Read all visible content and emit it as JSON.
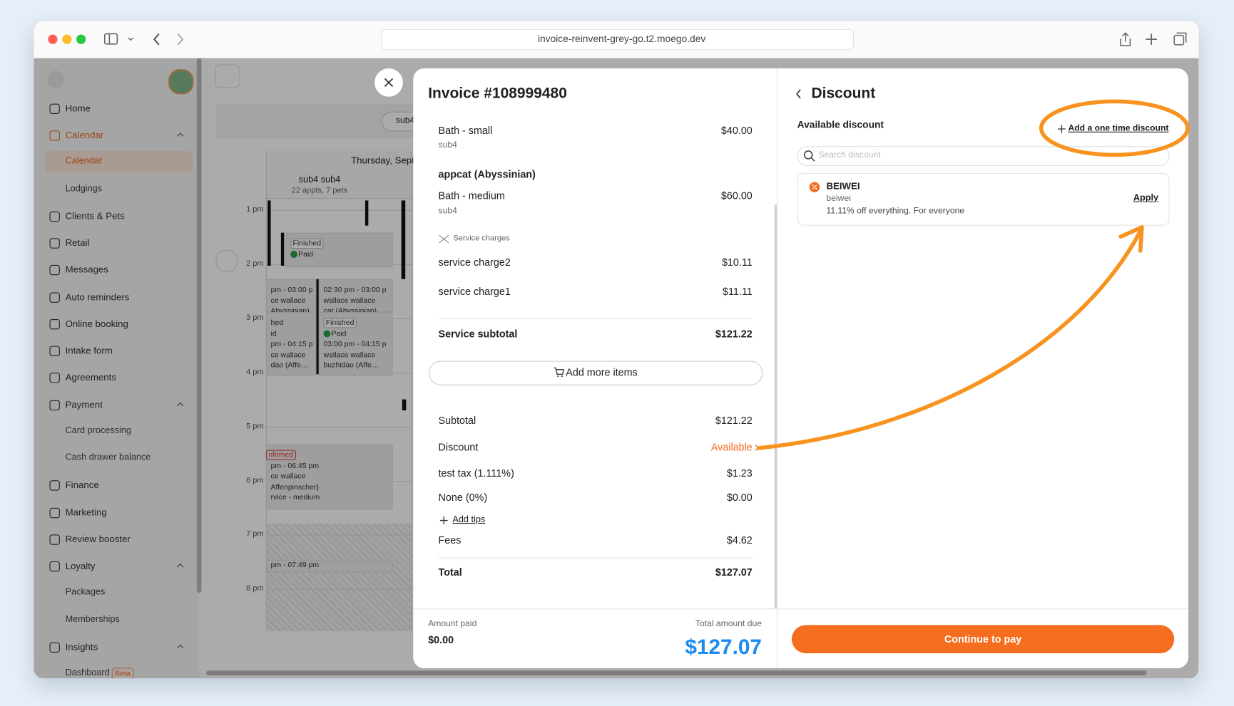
{
  "browser": {
    "url": "invoice-reinvent-grey-go.t2.moego.dev"
  },
  "sidebar": {
    "sections": [
      {
        "label": "Home"
      },
      {
        "label": "Calendar",
        "children": [
          {
            "label": "Calendar"
          },
          {
            "label": "Lodgings"
          }
        ]
      },
      {
        "label": "Clients & Pets"
      },
      {
        "label": "Retail"
      },
      {
        "label": "Messages"
      },
      {
        "label": "Auto reminders"
      },
      {
        "label": "Online booking"
      },
      {
        "label": "Intake form"
      },
      {
        "label": "Agreements"
      },
      {
        "label": "Payment",
        "children": [
          {
            "label": "Card processing"
          },
          {
            "label": "Cash drawer balance"
          }
        ]
      },
      {
        "label": "Finance"
      },
      {
        "label": "Marketing"
      },
      {
        "label": "Review booster"
      },
      {
        "label": "Loyalty",
        "children": [
          {
            "label": "Packages"
          },
          {
            "label": "Memberships"
          }
        ]
      },
      {
        "label": "Insights",
        "children": [
          {
            "label": "Dashboard",
            "badge": "Beta"
          }
        ]
      }
    ]
  },
  "calendar": {
    "filter": "sub4",
    "day": "Thursday, Sept",
    "staff": "sub4 sub4",
    "staff_meta": "22 appts, 7 pets",
    "times": [
      "1 pm",
      "2 pm",
      "3 pm",
      "4 pm",
      "5 pm",
      "6 pm",
      "7 pm",
      "8 pm"
    ],
    "events": [
      {
        "lines": [
          "Finished",
          "Paid"
        ]
      },
      {
        "lines": [
          "pm - 03:00 p",
          "ce wallace",
          "Abyssinian)"
        ]
      },
      {
        "lines": [
          "02:30 pm - 03:00 p",
          "wallace wallace",
          "cat (Abyssinian)"
        ]
      },
      {
        "lines": [
          "hed",
          "id",
          "pm - 04:15 p",
          "ce wallace",
          "dao (Affe…"
        ]
      },
      {
        "lines": [
          "Finished",
          "Paid",
          "03:00 pm - 04:15 p",
          "wallace wallace",
          "buzhidao (Affe…"
        ]
      },
      {
        "lines": [
          "nfirmed",
          "pm - 06:45 pm",
          "ce wallace",
          "Affenpinscher)",
          "rvice - medium"
        ]
      },
      {
        "lines": [
          "pm - 07:49 pm"
        ]
      }
    ]
  },
  "invoice": {
    "title": "Invoice #108999480",
    "groups": [
      {
        "items": [
          {
            "name": "Bath - small",
            "price": "$40.00",
            "staff": "sub4"
          }
        ]
      },
      {
        "pet": "appcat (Abyssinian)",
        "items": [
          {
            "name": "Bath - medium",
            "price": "$60.00",
            "staff": "sub4"
          }
        ]
      }
    ],
    "service_charges": {
      "label": "Service charges",
      "items": [
        {
          "name": "service charge2",
          "price": "$10.11"
        },
        {
          "name": "service charge1",
          "price": "$11.11"
        }
      ]
    },
    "service_subtotal": {
      "label": "Service subtotal",
      "value": "$121.22"
    },
    "add_items": "Add more items",
    "summary": [
      {
        "label": "Subtotal",
        "value": "$121.22"
      },
      {
        "label": "Discount",
        "value": "Available"
      },
      {
        "label": "test tax (1.111%)",
        "value": "$1.23"
      },
      {
        "label": "None (0%)",
        "value": "$0.00"
      }
    ],
    "add_tips": "Add tips",
    "fees": {
      "label": "Fees",
      "value": "$4.62"
    },
    "total": {
      "label": "Total",
      "value": "$127.07"
    },
    "footer": {
      "paid_label": "Amount paid",
      "paid": "$0.00",
      "due_label": "Total amount due",
      "due": "$127.07"
    }
  },
  "discount": {
    "title": "Discount",
    "available_label": "Available discount",
    "add_one_time": "Add a one time discount",
    "search_placeholder": "Search discount",
    "options": [
      {
        "code": "BEIWEI",
        "name": "beiwei",
        "description": "11.11% off everything. For everyone",
        "action": "Apply"
      }
    ],
    "continue": "Continue to pay"
  }
}
